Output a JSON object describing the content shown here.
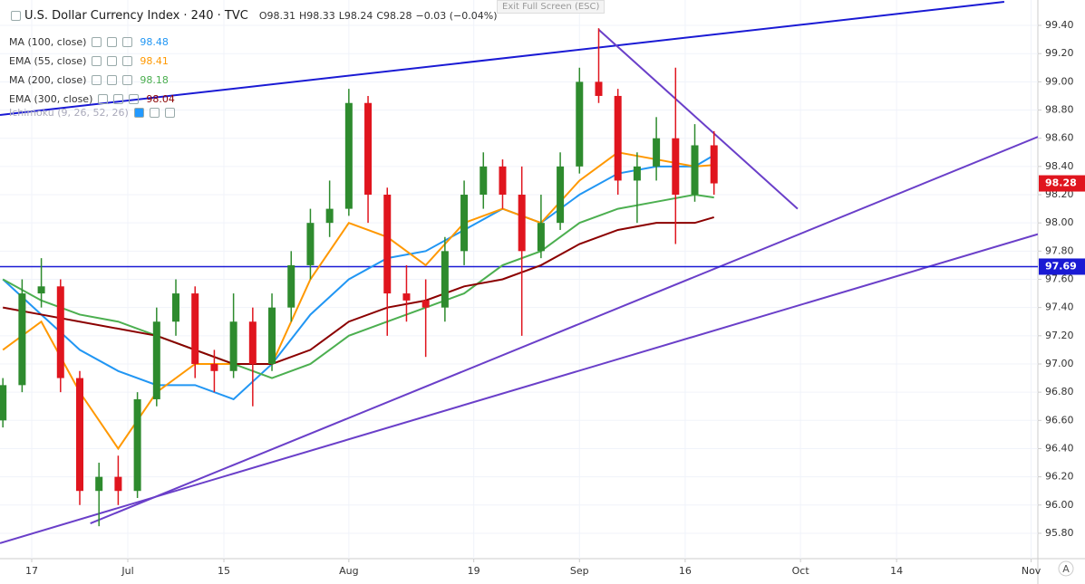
{
  "header": {
    "title": "U.S. Dollar Currency Index · 240 · TVC",
    "open": "O98.31",
    "high": "H98.33",
    "low": "L98.24",
    "close": "C98.28",
    "change": "−0.03 (−0.04%)",
    "exit_button": "Exit Full Screen (ESC)",
    "hidden_indicator": "Ichimoku (9, 26, 52, 26)",
    "axis_button": "A"
  },
  "chart_data": {
    "type": "candlestick",
    "x": [
      -3,
      -1,
      1,
      3,
      5,
      7,
      9,
      11,
      13,
      15,
      17,
      19,
      21,
      23,
      25,
      27,
      29,
      31,
      33,
      35,
      37,
      39,
      41,
      43,
      45,
      47,
      49,
      51,
      53,
      55,
      57,
      59,
      61,
      63,
      65,
      67,
      69,
      71
    ],
    "open": [
      96.6,
      96.85,
      97.5,
      97.55,
      96.9,
      96.1,
      96.2,
      96.1,
      96.75,
      97.3,
      97.5,
      97.0,
      96.95,
      97.3,
      97.0,
      97.4,
      97.7,
      98.0,
      98.1,
      98.85,
      98.2,
      97.5,
      97.45,
      97.4,
      97.8,
      98.2,
      98.4,
      98.2,
      97.8,
      98.0,
      98.4,
      99.0,
      98.9,
      98.3,
      98.4,
      98.6,
      98.2,
      98.55
    ],
    "high": [
      96.9,
      97.6,
      97.75,
      97.6,
      96.95,
      96.3,
      96.35,
      96.8,
      97.4,
      97.6,
      97.55,
      97.1,
      97.5,
      97.4,
      97.5,
      97.8,
      98.1,
      98.3,
      98.95,
      98.9,
      98.25,
      97.7,
      97.6,
      97.9,
      98.3,
      98.5,
      98.45,
      98.4,
      98.2,
      98.5,
      99.1,
      99.38,
      98.95,
      98.5,
      98.75,
      99.1,
      98.7,
      98.65
    ],
    "low": [
      96.55,
      96.8,
      97.4,
      96.8,
      96.0,
      95.85,
      96.0,
      96.05,
      96.7,
      97.2,
      96.9,
      96.8,
      96.9,
      96.7,
      96.95,
      97.3,
      97.6,
      97.9,
      98.05,
      98.0,
      97.2,
      97.3,
      97.05,
      97.3,
      97.7,
      98.1,
      98.1,
      97.2,
      97.75,
      97.95,
      98.35,
      98.85,
      98.2,
      98.0,
      98.3,
      97.85,
      98.15,
      98.2
    ],
    "close": [
      96.85,
      97.5,
      97.55,
      96.9,
      96.1,
      96.2,
      96.1,
      96.75,
      97.3,
      97.5,
      97.0,
      96.95,
      97.3,
      97.0,
      97.4,
      97.7,
      98.0,
      98.1,
      98.85,
      98.2,
      97.5,
      97.45,
      97.4,
      97.8,
      98.2,
      98.4,
      98.2,
      97.8,
      98.0,
      98.4,
      99.0,
      98.9,
      98.3,
      98.4,
      98.6,
      98.2,
      98.55,
      98.28
    ],
    "up_color": "#2e8b2e",
    "down_color": "#e0151e",
    "series": [
      {
        "name": "MA (100, close)",
        "color": "#2196f3",
        "x": [
          -3,
          1,
          5,
          9,
          13,
          17,
          21,
          25,
          29,
          33,
          37,
          41,
          45,
          49,
          53,
          57,
          61,
          65,
          69,
          71
        ],
        "values": [
          97.6,
          97.35,
          97.1,
          96.95,
          96.85,
          96.85,
          96.75,
          97.0,
          97.35,
          97.6,
          97.75,
          97.8,
          97.95,
          98.1,
          98.0,
          98.2,
          98.35,
          98.4,
          98.4,
          98.48
        ]
      },
      {
        "name": "EMA (55, close)",
        "color": "#ff9800",
        "x": [
          -3,
          1,
          5,
          9,
          13,
          17,
          21,
          25,
          29,
          33,
          37,
          41,
          45,
          49,
          53,
          57,
          61,
          65,
          69,
          71
        ],
        "values": [
          97.1,
          97.3,
          96.8,
          96.4,
          96.8,
          97.0,
          97.0,
          97.0,
          97.6,
          98.0,
          97.9,
          97.7,
          98.0,
          98.1,
          98.0,
          98.3,
          98.5,
          98.45,
          98.4,
          98.41
        ]
      },
      {
        "name": "MA (200, close)",
        "color": "#4caf50",
        "x": [
          -3,
          1,
          5,
          9,
          13,
          17,
          21,
          25,
          29,
          33,
          37,
          41,
          45,
          49,
          53,
          57,
          61,
          65,
          69,
          71
        ],
        "values": [
          97.6,
          97.45,
          97.35,
          97.3,
          97.2,
          97.1,
          97.0,
          96.9,
          97.0,
          97.2,
          97.3,
          97.4,
          97.5,
          97.7,
          97.8,
          98.0,
          98.1,
          98.15,
          98.2,
          98.18
        ]
      },
      {
        "name": "EMA (300, close)",
        "color": "#8b0000",
        "x": [
          -3,
          1,
          5,
          9,
          13,
          17,
          21,
          25,
          29,
          33,
          37,
          41,
          45,
          49,
          53,
          57,
          61,
          65,
          69,
          71
        ],
        "values": [
          97.4,
          97.35,
          97.3,
          97.25,
          97.2,
          97.1,
          97.0,
          97.0,
          97.1,
          97.3,
          97.4,
          97.45,
          97.55,
          97.6,
          97.7,
          97.85,
          97.95,
          98.0,
          98.0,
          98.04
        ]
      }
    ],
    "trendlines": [
      {
        "color": "#1a1ad4",
        "x": [
          -3.3,
          101.2
        ],
        "y": [
          98.765,
          99.567
        ]
      },
      {
        "color": "#6a3fc9",
        "x": [
          59.0,
          79.7
        ],
        "y": [
          99.37,
          98.1
        ]
      },
      {
        "color": "#6a3fc9",
        "x": [
          6.1,
          104.7
        ],
        "y": [
          95.87,
          98.61
        ]
      },
      {
        "color": "#6a3fc9",
        "x": [
          -3.3,
          104.7
        ],
        "y": [
          95.73,
          97.92
        ]
      }
    ],
    "hline": {
      "value": 97.69,
      "color": "#1a1ad4"
    },
    "xlim": [
      -3.3,
      104.7
    ],
    "ylim": [
      95.62,
      99.58
    ],
    "xticks": [
      {
        "value": 0,
        "label": "17"
      },
      {
        "value": 10,
        "label": "Jul"
      },
      {
        "value": 20,
        "label": "15"
      },
      {
        "value": 33,
        "label": "Aug"
      },
      {
        "value": 46,
        "label": "19"
      },
      {
        "value": 57,
        "label": "Sep"
      },
      {
        "value": 68,
        "label": "16"
      },
      {
        "value": 80,
        "label": "Oct"
      },
      {
        "value": 90,
        "label": "14"
      },
      {
        "value": 104,
        "label": "Nov"
      }
    ],
    "yticks": [
      {
        "value": 95.8,
        "label": "95.80"
      },
      {
        "value": 96.0,
        "label": "96.00"
      },
      {
        "value": 96.2,
        "label": "96.20"
      },
      {
        "value": 96.4,
        "label": "96.40"
      },
      {
        "value": 96.6,
        "label": "96.60"
      },
      {
        "value": 96.8,
        "label": "96.80"
      },
      {
        "value": 97.0,
        "label": "97.00"
      },
      {
        "value": 97.2,
        "label": "97.20"
      },
      {
        "value": 97.4,
        "label": "97.40"
      },
      {
        "value": 97.6,
        "label": "97.60"
      },
      {
        "value": 97.8,
        "label": "97.80"
      },
      {
        "value": 98.0,
        "label": "98.00"
      },
      {
        "value": 98.2,
        "label": "98.20"
      },
      {
        "value": 98.4,
        "label": "98.40"
      },
      {
        "value": 98.6,
        "label": "98.60"
      },
      {
        "value": 98.8,
        "label": "98.80"
      },
      {
        "value": 99.0,
        "label": "99.00"
      },
      {
        "value": 99.2,
        "label": "99.20"
      },
      {
        "value": 99.4,
        "label": "99.40"
      }
    ],
    "grid": true
  }
}
